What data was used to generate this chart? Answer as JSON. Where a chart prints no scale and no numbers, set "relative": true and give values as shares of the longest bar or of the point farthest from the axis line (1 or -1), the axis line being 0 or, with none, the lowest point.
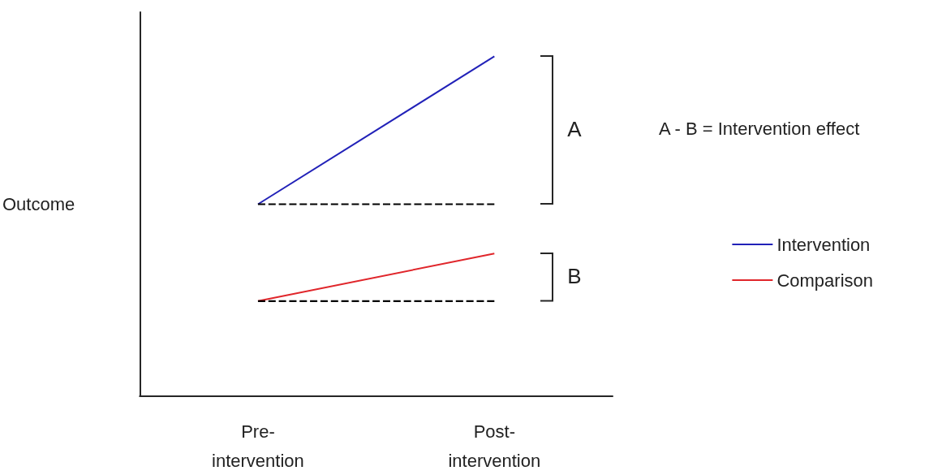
{
  "chart_data": {
    "type": "line",
    "relative": true,
    "ylabel": "Outcome",
    "categories": [
      "Pre-\nintervention",
      "Post-\nintervention"
    ],
    "series": [
      {
        "name": "Intervention",
        "color": "#2121b8",
        "values": [
          0.565,
          1
        ]
      },
      {
        "name": "Comparison",
        "color": "#e0262b",
        "values": [
          0.28,
          0.42
        ]
      },
      {
        "type": "line",
        "color": "#000000",
        "line_style": "dashed",
        "values": [
          0.565,
          0.565
        ]
      },
      {
        "type": "line",
        "color": "#000000",
        "line_style": "dashed",
        "values": [
          0.28,
          0.28
        ]
      }
    ],
    "annotations": [
      "A",
      "B",
      "A - B = Intervention effect"
    ],
    "legend": "right",
    "grid": false,
    "marker": "none"
  }
}
